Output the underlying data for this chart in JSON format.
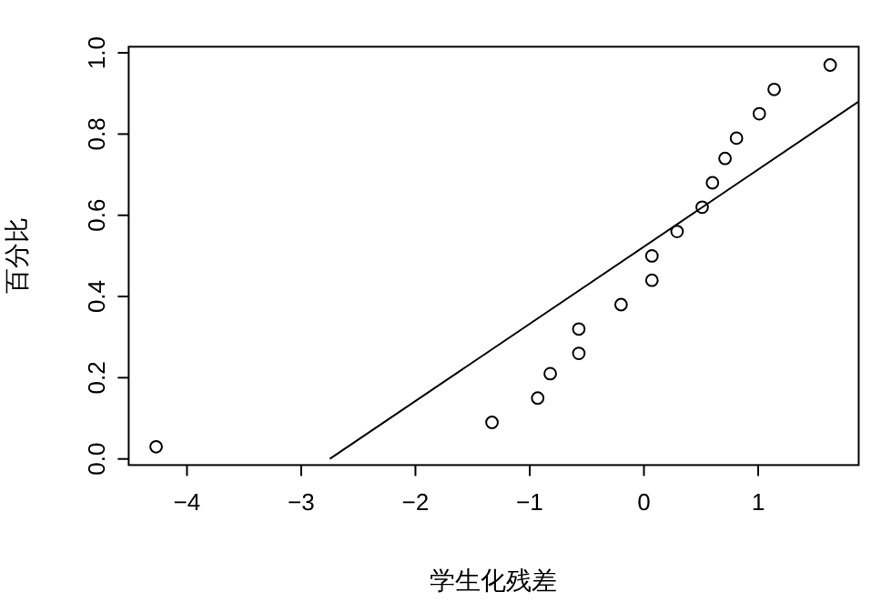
{
  "chart_data": {
    "type": "scatter",
    "xlabel": "学生化残差",
    "ylabel": "百分比",
    "xlim": [
      -4.51,
      1.88
    ],
    "ylim": [
      -0.015,
      1.015
    ],
    "xticks": [
      -4,
      -3,
      -2,
      -1,
      0,
      1
    ],
    "yticks": [
      {
        "value": 0,
        "label": "0.0"
      },
      {
        "value": 0.2,
        "label": "0.2"
      },
      {
        "value": 0.4,
        "label": "0.4"
      },
      {
        "value": 0.6,
        "label": "0.6"
      },
      {
        "value": 0.8,
        "label": "0.8"
      },
      {
        "value": 1,
        "label": "1.0"
      }
    ],
    "grid": false,
    "series": [
      {
        "marker": "circle",
        "color": "#000000",
        "x": [
          -4.27,
          -1.33,
          -0.93,
          -0.82,
          -0.57,
          -0.57,
          -0.2,
          0.07,
          0.07,
          0.29,
          0.51,
          0.6,
          0.71,
          0.81,
          1.01,
          1.14,
          1.63
        ],
        "values": [
          0.03,
          0.09,
          0.15,
          0.21,
          0.26,
          0.32,
          0.38,
          0.44,
          0.5,
          0.56,
          0.62,
          0.68,
          0.74,
          0.79,
          0.85,
          0.91,
          0.97
        ]
      },
      {
        "type": "line",
        "color": "#000000",
        "x": [
          -2.75,
          1.88
        ],
        "values": [
          0,
          0.88
        ],
        "line_style": "solid",
        "marker": "none"
      }
    ]
  }
}
